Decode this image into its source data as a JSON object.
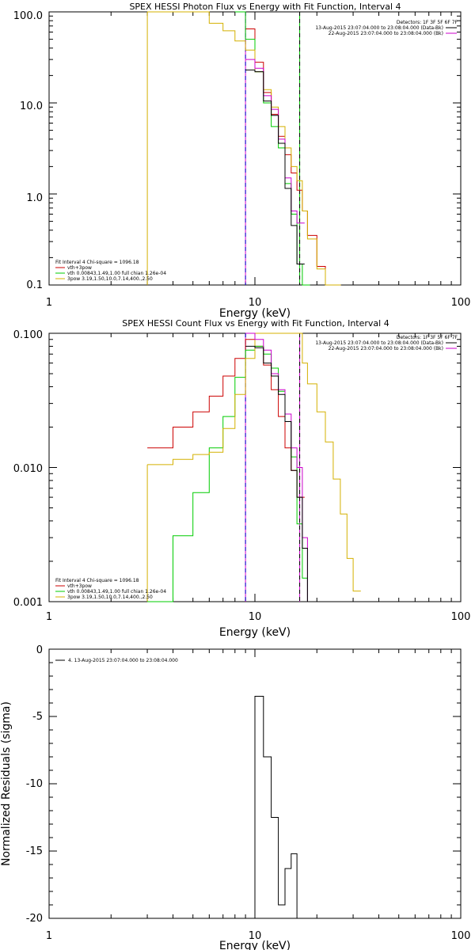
{
  "colors": {
    "black": "#000000",
    "red": "#cc0000",
    "green": "#00cc00",
    "yellow": "#d4b000",
    "magenta": "#cc00cc",
    "blue": "#0000cc"
  },
  "chart_data": [
    {
      "type": "line",
      "title": "SPEX HESSI Photon Flux vs Energy with Fit Function, Interval 4",
      "xlabel": "Energy (keV)",
      "ylabel": "",
      "xscale": "log",
      "yscale": "log",
      "xlim": [
        1,
        100
      ],
      "ylim": [
        0.1,
        100
      ],
      "x_ticks": [
        "1",
        "10",
        "100"
      ],
      "y_ticks": [
        "0.1",
        "1.0",
        "10.0",
        "100.0"
      ],
      "edges": [
        3,
        4,
        5,
        6,
        7,
        8,
        9,
        10,
        11,
        12,
        13,
        14,
        15,
        16,
        17,
        18,
        20,
        22,
        24,
        26,
        28,
        30
      ],
      "detectors_label": "Detectors: 1F 3F 5F 6F 7F",
      "time_labels": [
        {
          "text": "13-Aug-2015 23:07:04.000 to 23:08:04.000 (Data-Bk)",
          "color": "black"
        },
        {
          "text": "22-Aug-2015 23:07:04.000 to 23:08:04.000 (Bk)",
          "color": "magenta"
        }
      ],
      "legend_header": "Fit Interval 4   Chi-square = 1096.18",
      "legend": [
        {
          "text": "vth+3pow",
          "color": "red"
        },
        {
          "text": "vth 0.00843,1.49,1.00  full chian 1.26e-04",
          "color": "green"
        },
        {
          "text": "3pow 3.19,1.50,10.0,7.14,400.,2.50",
          "color": "yellow"
        }
      ],
      "vlines": [
        {
          "x": 9,
          "color": "magenta",
          "dash": false
        },
        {
          "x": 9,
          "color": "blue",
          "dash": true
        },
        {
          "x": 16.5,
          "color": "green",
          "dash": false
        },
        {
          "x": 16.5,
          "color": "black",
          "dash": true
        }
      ],
      "extra_lines": [
        {
          "color": "yellow",
          "points": [
            [
              3,
              0.1
            ],
            [
              3,
              100
            ]
          ]
        }
      ],
      "series": [
        {
          "name": "vth+3pow",
          "color": "red",
          "x": [
            9,
            10,
            11,
            12,
            13,
            14,
            15,
            16,
            17,
            18,
            20,
            22,
            24
          ],
          "values": [
            65,
            28,
            13,
            7.5,
            4.3,
            2.7,
            1.7,
            1.1,
            0.65,
            0.35,
            0.16,
            0.1,
            0.1
          ]
        },
        {
          "name": "vth",
          "color": "green",
          "x": [
            8,
            9,
            10,
            11,
            12,
            13,
            14,
            15,
            16,
            17
          ],
          "values": [
            100,
            50,
            22,
            10,
            5.5,
            3.2,
            1.3,
            0.6,
            0.17,
            0.1
          ]
        },
        {
          "name": "3pow",
          "color": "yellow",
          "x": [
            3,
            4,
            5,
            6,
            7,
            8,
            9,
            10,
            11,
            12,
            13,
            14,
            15,
            16,
            17,
            18,
            20,
            22,
            24
          ],
          "values": [
            100,
            100,
            100,
            75,
            62,
            48,
            38,
            22,
            14,
            9,
            5.5,
            3.2,
            2,
            1.4,
            0.65,
            0.32,
            0.15,
            0.1,
            0.1
          ]
        },
        {
          "name": "",
          "color": "magenta",
          "x": [
            9,
            10,
            11,
            12,
            13,
            14,
            15,
            16
          ],
          "values": [
            30,
            24,
            12,
            8.5,
            4,
            1.5,
            0.65,
            0.48
          ]
        },
        {
          "name": "",
          "color": "black",
          "x": [
            9,
            10,
            11,
            12,
            13,
            14,
            15,
            16
          ],
          "values": [
            23,
            22,
            10.5,
            7.3,
            3.6,
            1.15,
            0.45,
            0.17
          ]
        }
      ]
    },
    {
      "type": "line",
      "title": "SPEX HESSI Count Flux vs Energy with Fit Function, Interval 4",
      "xlabel": "Energy (keV)",
      "ylabel": "",
      "xscale": "log",
      "yscale": "log",
      "xlim": [
        1,
        100
      ],
      "ylim": [
        0.001,
        0.1
      ],
      "x_ticks": [
        "1",
        "10",
        "100"
      ],
      "y_ticks": [
        "0.001",
        "0.010",
        "0.100"
      ],
      "detectors_label": "Detectors: 1F 3F 5F 6F 7F",
      "time_labels": [
        {
          "text": "13-Aug-2015 23:07:04.000 to 23:08:04.000 (Data-Bk)",
          "color": "black"
        },
        {
          "text": "22-Aug-2015 23:07:04.000 to 23:08:04.000 (Bk)",
          "color": "magenta"
        }
      ],
      "legend_header": "Fit Interval 4   Chi-square = 1096.18",
      "legend": [
        {
          "text": "vth+3pow",
          "color": "red"
        },
        {
          "text": "vth 0.00843,1.49,1.00  full chian 1.26e-04",
          "color": "green"
        },
        {
          "text": "3pow 3.19,1.50,10.0,7.14,400.,2.50",
          "color": "yellow"
        }
      ],
      "vlines": [
        {
          "x": 9,
          "color": "magenta",
          "dash": false
        },
        {
          "x": 9,
          "color": "blue",
          "dash": true
        },
        {
          "x": 16.5,
          "color": "magenta",
          "dash": false
        },
        {
          "x": 16.5,
          "color": "black",
          "dash": true
        }
      ],
      "extra_lines": [
        {
          "color": "yellow",
          "points": [
            [
              3,
              0.001
            ],
            [
              3,
              0.0105
            ]
          ]
        }
      ],
      "series": [
        {
          "name": "vth+3pow",
          "color": "red",
          "x": [
            3,
            4,
            5,
            6,
            7,
            8,
            9,
            10,
            11,
            12,
            13,
            14,
            15,
            16
          ],
          "values": [
            0.014,
            0.02,
            0.026,
            0.034,
            0.048,
            0.065,
            0.09,
            0.08,
            0.058,
            0.038,
            0.024,
            0.014,
            0.0095,
            0.006
          ]
        },
        {
          "name": "vth",
          "color": "green",
          "x": [
            3,
            4,
            5,
            6,
            7,
            8,
            9,
            10,
            11,
            12,
            13,
            14,
            15,
            16,
            17,
            18,
            20
          ],
          "values": [
            0.001,
            0.0031,
            0.0065,
            0.014,
            0.024,
            0.047,
            0.075,
            0.08,
            0.07,
            0.055,
            0.037,
            0.022,
            0.012,
            0.0038,
            0.0015,
            0.001,
            0.001
          ]
        },
        {
          "name": "3pow",
          "color": "yellow",
          "x": [
            3,
            4,
            5,
            6,
            7,
            8,
            9,
            10,
            11,
            12,
            13,
            14,
            15,
            16,
            17,
            18,
            20,
            22,
            24,
            26,
            28,
            30
          ],
          "values": [
            0.0105,
            0.0115,
            0.0125,
            0.013,
            0.0195,
            0.035,
            0.065,
            0.1,
            0.1,
            0.1,
            0.1,
            0.1,
            0.1,
            0.1,
            0.06,
            0.042,
            0.026,
            0.0155,
            0.0082,
            0.0045,
            0.0021,
            0.0012
          ]
        },
        {
          "name": "",
          "color": "magenta",
          "x": [
            9,
            10,
            11,
            12,
            13,
            14,
            15,
            16,
            17,
            18,
            20
          ],
          "values": [
            0.1,
            0.09,
            0.075,
            0.05,
            0.038,
            0.025,
            0.014,
            0.01,
            0.003,
            0.001,
            0.001
          ]
        },
        {
          "name": "",
          "color": "black",
          "x": [
            9,
            10,
            11,
            12,
            13,
            14,
            15,
            16,
            17,
            18,
            20
          ],
          "values": [
            0.08,
            0.078,
            0.06,
            0.048,
            0.035,
            0.022,
            0.0095,
            0.006,
            0.0025,
            0.001,
            0.001
          ]
        }
      ]
    },
    {
      "type": "line",
      "title": "",
      "xlabel": "Energy (keV)",
      "ylabel": "Normalized Residuals (sigma)",
      "xscale": "log",
      "yscale": "linear",
      "xlim": [
        1,
        100
      ],
      "ylim": [
        -20,
        0
      ],
      "x_ticks": [
        "1",
        "10",
        "100"
      ],
      "y_ticks": [
        "-20",
        "-15",
        "-10",
        "-5",
        "0"
      ],
      "legend": [
        {
          "text": "4. 13-Aug-2015 23:07:04.000 to 23:08:04.000",
          "color": "black"
        }
      ],
      "series": [
        {
          "name": "",
          "color": "black",
          "x": [
            9,
            10,
            11,
            12,
            13,
            14,
            15,
            16
          ],
          "values": [
            -20,
            -3.5,
            -8,
            -12.5,
            -19,
            -16.3,
            -15.2,
            -20
          ]
        }
      ]
    }
  ]
}
